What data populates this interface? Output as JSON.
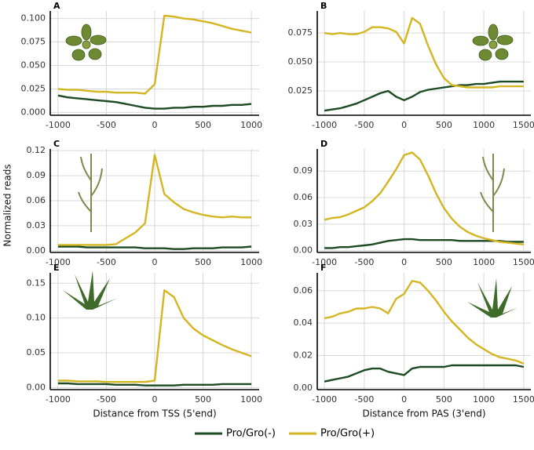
{
  "ylabel": "Normalized reads",
  "chart_data": [
    {
      "type": "line",
      "panel": "A",
      "x": [
        -1000,
        -900,
        -800,
        -700,
        -600,
        -500,
        -400,
        -300,
        -200,
        -100,
        0,
        100,
        200,
        300,
        400,
        500,
        600,
        700,
        800,
        900,
        1000
      ],
      "xlim": [
        -1080,
        1080
      ],
      "xticks": [
        -1000,
        -500,
        0,
        500,
        1000
      ],
      "ylim": [
        -0.003,
        0.108
      ],
      "yticks": [
        {
          "value": 0,
          "label": "0.000"
        },
        {
          "value": 0.025,
          "label": "0.025"
        },
        {
          "value": 0.05,
          "label": "0.050"
        },
        {
          "value": 0.075,
          "label": "0.075"
        },
        {
          "value": 0.1,
          "label": "0.100"
        }
      ],
      "grid": true,
      "series": [
        {
          "name": "Pro/Gro(-)",
          "color": "#1c4a23",
          "values": [
            0.018,
            0.016,
            0.015,
            0.014,
            0.013,
            0.012,
            0.011,
            0.009,
            0.007,
            0.005,
            0.004,
            0.004,
            0.005,
            0.005,
            0.006,
            0.006,
            0.007,
            0.007,
            0.008,
            0.008,
            0.009
          ]
        },
        {
          "name": "Pro/Gro(+)",
          "color": "#d4b522",
          "values": [
            0.025,
            0.024,
            0.024,
            0.023,
            0.022,
            0.022,
            0.021,
            0.021,
            0.021,
            0.02,
            0.03,
            0.103,
            0.102,
            0.1,
            0.099,
            0.097,
            0.095,
            0.092,
            0.089,
            0.087,
            0.085
          ]
        }
      ]
    },
    {
      "type": "line",
      "panel": "B",
      "x": [
        -1000,
        -900,
        -800,
        -700,
        -600,
        -500,
        -400,
        -300,
        -200,
        -100,
        0,
        100,
        200,
        300,
        400,
        500,
        600,
        700,
        800,
        900,
        1000,
        1100,
        1200,
        1300,
        1400,
        1500
      ],
      "xlim": [
        -1090,
        1590
      ],
      "xticks": [
        -1000,
        -500,
        0,
        500,
        1000,
        1500
      ],
      "ylim": [
        0.004,
        0.094
      ],
      "yticks": [
        {
          "value": 0.025,
          "label": "0.025"
        },
        {
          "value": 0.05,
          "label": "0.050"
        },
        {
          "value": 0.075,
          "label": "0.075"
        }
      ],
      "grid": true,
      "series": [
        {
          "name": "Pro/Gro(-)",
          "color": "#1c4a23",
          "values": [
            0.008,
            0.009,
            0.01,
            0.012,
            0.014,
            0.017,
            0.02,
            0.023,
            0.025,
            0.02,
            0.017,
            0.02,
            0.024,
            0.026,
            0.027,
            0.028,
            0.029,
            0.03,
            0.03,
            0.031,
            0.031,
            0.032,
            0.033,
            0.033,
            0.033,
            0.033
          ]
        },
        {
          "name": "Pro/Gro(+)",
          "color": "#d4b522",
          "values": [
            0.075,
            0.074,
            0.075,
            0.074,
            0.074,
            0.076,
            0.08,
            0.08,
            0.079,
            0.076,
            0.066,
            0.088,
            0.083,
            0.064,
            0.048,
            0.036,
            0.03,
            0.029,
            0.028,
            0.028,
            0.028,
            0.028,
            0.029,
            0.029,
            0.029,
            0.029
          ]
        }
      ]
    },
    {
      "type": "line",
      "panel": "C",
      "x": [
        -1000,
        -900,
        -800,
        -700,
        -600,
        -500,
        -400,
        -300,
        -200,
        -100,
        0,
        100,
        200,
        300,
        400,
        500,
        600,
        700,
        800,
        900,
        1000
      ],
      "xlim": [
        -1080,
        1080
      ],
      "xticks": [
        -1000,
        -500,
        0,
        500,
        1000
      ],
      "ylim": [
        -0.002,
        0.122
      ],
      "yticks": [
        {
          "value": 0,
          "label": "0.00"
        },
        {
          "value": 0.03,
          "label": "0.03"
        },
        {
          "value": 0.06,
          "label": "0.06"
        },
        {
          "value": 0.09,
          "label": "0.09"
        },
        {
          "value": 0.12,
          "label": "0.12"
        }
      ],
      "grid": true,
      "series": [
        {
          "name": "Pro/Gro(-)",
          "color": "#1c4a23",
          "values": [
            0.005,
            0.005,
            0.005,
            0.004,
            0.004,
            0.004,
            0.004,
            0.004,
            0.004,
            0.003,
            0.003,
            0.003,
            0.002,
            0.002,
            0.003,
            0.003,
            0.003,
            0.004,
            0.004,
            0.004,
            0.005
          ]
        },
        {
          "name": "Pro/Gro(+)",
          "color": "#d4b522",
          "values": [
            0.007,
            0.007,
            0.007,
            0.007,
            0.007,
            0.007,
            0.008,
            0.015,
            0.022,
            0.033,
            0.115,
            0.068,
            0.058,
            0.05,
            0.046,
            0.043,
            0.041,
            0.04,
            0.041,
            0.04,
            0.04
          ]
        }
      ]
    },
    {
      "type": "line",
      "panel": "D",
      "x": [
        -1000,
        -900,
        -800,
        -700,
        -600,
        -500,
        -400,
        -300,
        -200,
        -100,
        0,
        100,
        200,
        300,
        400,
        500,
        600,
        700,
        800,
        900,
        1000,
        1100,
        1200,
        1300,
        1400,
        1500
      ],
      "xlim": [
        -1090,
        1590
      ],
      "xticks": [
        -1000,
        -500,
        0,
        500,
        1000,
        1500
      ],
      "ylim": [
        -0.002,
        0.115
      ],
      "yticks": [
        {
          "value": 0,
          "label": "0.00"
        },
        {
          "value": 0.03,
          "label": "0.03"
        },
        {
          "value": 0.06,
          "label": "0.06"
        },
        {
          "value": 0.09,
          "label": "0.09"
        }
      ],
      "grid": true,
      "series": [
        {
          "name": "Pro/Gro(-)",
          "color": "#1c4a23",
          "values": [
            0.003,
            0.003,
            0.004,
            0.004,
            0.005,
            0.006,
            0.007,
            0.009,
            0.011,
            0.012,
            0.013,
            0.013,
            0.012,
            0.012,
            0.012,
            0.012,
            0.012,
            0.011,
            0.011,
            0.011,
            0.011,
            0.011,
            0.011,
            0.01,
            0.01,
            0.01
          ]
        },
        {
          "name": "Pro/Gro(+)",
          "color": "#d4b522",
          "values": [
            0.035,
            0.037,
            0.038,
            0.041,
            0.045,
            0.049,
            0.056,
            0.065,
            0.078,
            0.092,
            0.108,
            0.111,
            0.103,
            0.085,
            0.065,
            0.048,
            0.036,
            0.027,
            0.021,
            0.017,
            0.014,
            0.012,
            0.01,
            0.009,
            0.008,
            0.007
          ]
        }
      ]
    },
    {
      "type": "line",
      "panel": "E",
      "xlabel": "Distance from TSS (5'end)",
      "x": [
        -1000,
        -900,
        -800,
        -700,
        -600,
        -500,
        -400,
        -300,
        -200,
        -100,
        0,
        100,
        200,
        300,
        400,
        500,
        600,
        700,
        800,
        900,
        1000
      ],
      "xlim": [
        -1080,
        1080
      ],
      "xticks": [
        -1000,
        -500,
        0,
        500,
        1000
      ],
      "ylim": [
        -0.003,
        0.165
      ],
      "yticks": [
        {
          "value": 0,
          "label": "0.00"
        },
        {
          "value": 0.05,
          "label": "0.05"
        },
        {
          "value": 0.1,
          "label": "0.10"
        },
        {
          "value": 0.15,
          "label": "0.15"
        }
      ],
      "grid": true,
      "series": [
        {
          "name": "Pro/Gro(-)",
          "color": "#1c4a23",
          "values": [
            0.006,
            0.006,
            0.005,
            0.005,
            0.005,
            0.005,
            0.004,
            0.004,
            0.004,
            0.003,
            0.003,
            0.003,
            0.003,
            0.004,
            0.004,
            0.004,
            0.004,
            0.005,
            0.005,
            0.005,
            0.005
          ]
        },
        {
          "name": "Pro/Gro(+)",
          "color": "#d4b522",
          "values": [
            0.01,
            0.01,
            0.009,
            0.009,
            0.009,
            0.008,
            0.008,
            0.008,
            0.008,
            0.008,
            0.01,
            0.14,
            0.13,
            0.1,
            0.085,
            0.075,
            0.068,
            0.061,
            0.055,
            0.05,
            0.045
          ]
        }
      ]
    },
    {
      "type": "line",
      "panel": "F",
      "xlabel": "Distance from PAS (3'end)",
      "x": [
        -1000,
        -900,
        -800,
        -700,
        -600,
        -500,
        -400,
        -300,
        -200,
        -100,
        0,
        100,
        200,
        300,
        400,
        500,
        600,
        700,
        800,
        900,
        1000,
        1100,
        1200,
        1300,
        1400,
        1500
      ],
      "xlim": [
        -1090,
        1590
      ],
      "xticks": [
        -1000,
        -500,
        0,
        500,
        1000,
        1500
      ],
      "ylim": [
        -0.001,
        0.071
      ],
      "yticks": [
        {
          "value": 0,
          "label": "0.00"
        },
        {
          "value": 0.02,
          "label": "0.02"
        },
        {
          "value": 0.04,
          "label": "0.04"
        },
        {
          "value": 0.06,
          "label": "0.06"
        }
      ],
      "grid": true,
      "series": [
        {
          "name": "Pro/Gro(-)",
          "color": "#1c4a23",
          "values": [
            0.004,
            0.005,
            0.006,
            0.007,
            0.009,
            0.011,
            0.012,
            0.012,
            0.01,
            0.009,
            0.008,
            0.012,
            0.013,
            0.013,
            0.013,
            0.013,
            0.014,
            0.014,
            0.014,
            0.014,
            0.014,
            0.014,
            0.014,
            0.014,
            0.014,
            0.013
          ]
        },
        {
          "name": "Pro/Gro(+)",
          "color": "#d4b522",
          "values": [
            0.043,
            0.044,
            0.046,
            0.047,
            0.049,
            0.049,
            0.05,
            0.049,
            0.046,
            0.055,
            0.058,
            0.066,
            0.065,
            0.06,
            0.054,
            0.047,
            0.041,
            0.036,
            0.031,
            0.027,
            0.024,
            0.021,
            0.019,
            0.018,
            0.017,
            0.015
          ]
        }
      ]
    }
  ]
}
